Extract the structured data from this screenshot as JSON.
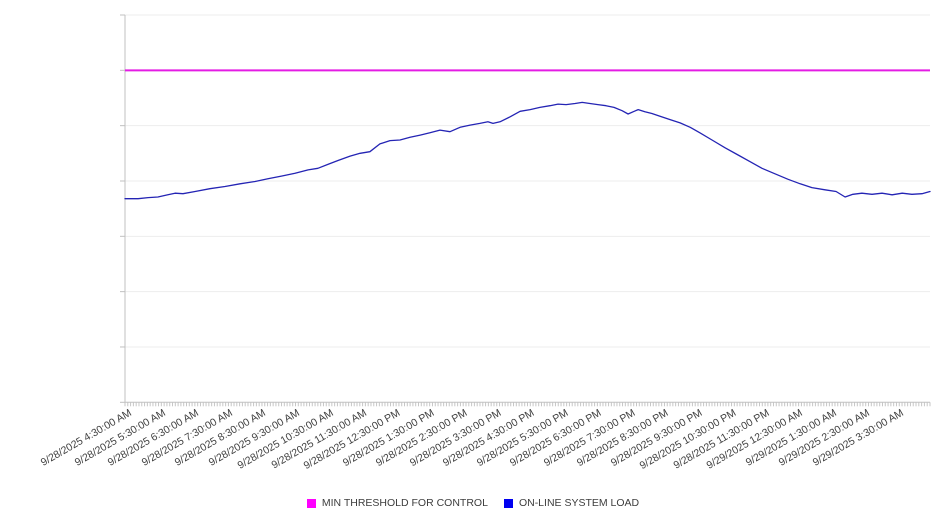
{
  "chart_data": {
    "type": "line",
    "title": "",
    "xlabel": "",
    "ylabel": "",
    "grid": true,
    "legend_position": "bottom-center",
    "x_axis": {
      "range_hours": 24,
      "tick_interval": "1 hour",
      "minor_ticks_per_hour": 12,
      "tick_labels": [
        "9/28/2025 4:30:00 AM",
        "9/28/2025 5:30:00 AM",
        "9/28/2025 6:30:00 AM",
        "9/28/2025 7:30:00 AM",
        "9/28/2025 8:30:00 AM",
        "9/28/2025 9:30:00 AM",
        "9/28/2025 10:30:00 AM",
        "9/28/2025 11:30:00 AM",
        "9/28/2025 12:30:00 PM",
        "9/28/2025 1:30:00 PM",
        "9/28/2025 2:30:00 PM",
        "9/28/2025 3:30:00 PM",
        "9/28/2025 4:30:00 PM",
        "9/28/2025 5:30:00 PM",
        "9/28/2025 6:30:00 PM",
        "9/28/2025 7:30:00 PM",
        "9/28/2025 8:30:00 PM",
        "9/28/2025 9:30:00 PM",
        "9/28/2025 10:30:00 PM",
        "9/28/2025 11:30:00 PM",
        "9/29/2025 12:30:00 AM",
        "9/29/2025 1:30:00 AM",
        "9/29/2025 2:30:00 AM",
        "9/29/2025 3:30:00 AM"
      ]
    },
    "y_axis": {
      "labels_shown": false,
      "gridline_divisions": 7,
      "ylim": [
        0,
        7
      ]
    },
    "series": [
      {
        "name": "MIN THRESHOLD FOR CONTROL",
        "type": "constant-line",
        "color": "#e41ce4",
        "value": 6.0
      },
      {
        "name": "ON-LINE SYSTEM LOAD",
        "type": "line",
        "color": "#2424b4",
        "points_hours_vs_value": [
          [
            0.0,
            3.68
          ],
          [
            0.39,
            3.68
          ],
          [
            0.69,
            3.7
          ],
          [
            0.98,
            3.71
          ],
          [
            1.28,
            3.75
          ],
          [
            1.49,
            3.78
          ],
          [
            1.73,
            3.77
          ],
          [
            2.09,
            3.81
          ],
          [
            2.53,
            3.86
          ],
          [
            2.98,
            3.9
          ],
          [
            3.43,
            3.95
          ],
          [
            3.88,
            3.99
          ],
          [
            4.26,
            4.04
          ],
          [
            4.68,
            4.09
          ],
          [
            5.07,
            4.14
          ],
          [
            5.46,
            4.2
          ],
          [
            5.75,
            4.23
          ],
          [
            6.05,
            4.3
          ],
          [
            6.35,
            4.37
          ],
          [
            6.71,
            4.45
          ],
          [
            7.01,
            4.5
          ],
          [
            7.3,
            4.53
          ],
          [
            7.6,
            4.67
          ],
          [
            7.9,
            4.73
          ],
          [
            8.2,
            4.74
          ],
          [
            8.5,
            4.79
          ],
          [
            8.8,
            4.83
          ],
          [
            9.09,
            4.87
          ],
          [
            9.39,
            4.92
          ],
          [
            9.69,
            4.89
          ],
          [
            9.99,
            4.97
          ],
          [
            10.29,
            5.01
          ],
          [
            10.58,
            5.04
          ],
          [
            10.82,
            5.07
          ],
          [
            10.97,
            5.04
          ],
          [
            11.18,
            5.07
          ],
          [
            11.48,
            5.16
          ],
          [
            11.78,
            5.26
          ],
          [
            12.08,
            5.29
          ],
          [
            12.37,
            5.33
          ],
          [
            12.67,
            5.36
          ],
          [
            12.91,
            5.39
          ],
          [
            13.15,
            5.38
          ],
          [
            13.42,
            5.4
          ],
          [
            13.63,
            5.42
          ],
          [
            13.86,
            5.4
          ],
          [
            14.1,
            5.38
          ],
          [
            14.34,
            5.36
          ],
          [
            14.58,
            5.33
          ],
          [
            14.82,
            5.27
          ],
          [
            15.0,
            5.21
          ],
          [
            15.18,
            5.26
          ],
          [
            15.3,
            5.29
          ],
          [
            15.5,
            5.25
          ],
          [
            15.71,
            5.22
          ],
          [
            15.95,
            5.17
          ],
          [
            16.25,
            5.11
          ],
          [
            16.55,
            5.05
          ],
          [
            16.85,
            4.97
          ],
          [
            17.14,
            4.87
          ],
          [
            17.5,
            4.74
          ],
          [
            17.89,
            4.6
          ],
          [
            18.28,
            4.47
          ],
          [
            18.63,
            4.35
          ],
          [
            18.99,
            4.23
          ],
          [
            19.38,
            4.13
          ],
          [
            19.77,
            4.03
          ],
          [
            20.13,
            3.95
          ],
          [
            20.48,
            3.88
          ],
          [
            20.87,
            3.84
          ],
          [
            21.2,
            3.81
          ],
          [
            21.47,
            3.71
          ],
          [
            21.7,
            3.76
          ],
          [
            21.97,
            3.78
          ],
          [
            22.27,
            3.76
          ],
          [
            22.57,
            3.78
          ],
          [
            22.87,
            3.75
          ],
          [
            23.17,
            3.78
          ],
          [
            23.46,
            3.76
          ],
          [
            23.76,
            3.77
          ],
          [
            24.0,
            3.81
          ]
        ]
      }
    ]
  },
  "legend": {
    "items": [
      {
        "label": "MIN THRESHOLD FOR CONTROL",
        "color": "#ff00ff"
      },
      {
        "label": "ON-LINE SYSTEM LOAD",
        "color": "#0000f0"
      }
    ]
  }
}
